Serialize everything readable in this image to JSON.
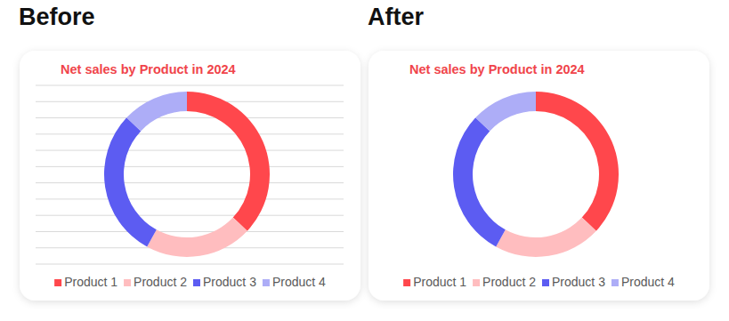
{
  "headings": [
    "Before",
    "After"
  ],
  "chart_data": [
    {
      "type": "donut",
      "title": "Net sales by Product in 2024",
      "categories": [
        "Product 1",
        "Product 2",
        "Product 3",
        "Product 4"
      ],
      "values": [
        37,
        21,
        29,
        13
      ],
      "colors": [
        "#ff474c",
        "#ffbdbf",
        "#5c5cf2",
        "#adadf7"
      ],
      "grid": true,
      "legend": "bottom"
    },
    {
      "type": "donut",
      "title": "Net sales by Product in 2024",
      "categories": [
        "Product 1",
        "Product 2",
        "Product 3",
        "Product 4"
      ],
      "values": [
        37,
        21,
        29,
        13
      ],
      "colors": [
        "#ff474c",
        "#ffbdbf",
        "#5c5cf2",
        "#adadf7"
      ],
      "grid": false,
      "legend": "bottom"
    }
  ]
}
